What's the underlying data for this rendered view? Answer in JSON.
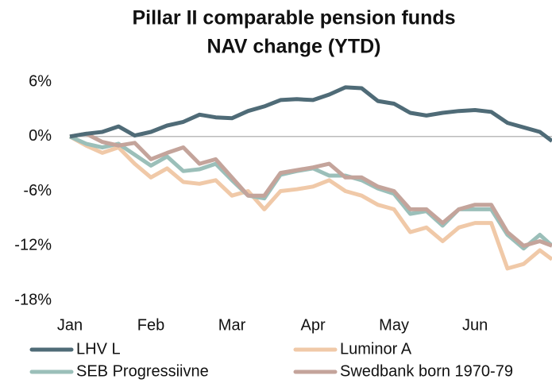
{
  "chart_data": {
    "type": "line",
    "title": [
      "Pillar II comparable pension funds",
      "NAV change (YTD)"
    ],
    "x": [
      0,
      0.2,
      0.4,
      0.6,
      0.8,
      1.0,
      1.2,
      1.4,
      1.6,
      1.8,
      2.0,
      2.2,
      2.4,
      2.6,
      2.8,
      3.0,
      3.2,
      3.4,
      3.6,
      3.8,
      4.0,
      4.2,
      4.4,
      4.6,
      4.8,
      5.0,
      5.2,
      5.4,
      5.6,
      5.8,
      5.95
    ],
    "series": [
      {
        "name": "Luminor A",
        "color": "#f0c9a8",
        "values": [
          0,
          -1.0,
          -1.8,
          -1.2,
          -3.0,
          -4.5,
          -3.5,
          -5.0,
          -5.2,
          -4.8,
          -6.5,
          -6.0,
          -8.0,
          -6.0,
          -5.8,
          -5.5,
          -4.8,
          -6.0,
          -6.5,
          -7.5,
          -8.0,
          -10.5,
          -10.0,
          -11.5,
          -10.0,
          -9.5,
          -9.5,
          -14.5,
          -14.0,
          -12.5,
          -13.5
        ]
      },
      {
        "name": "SEB Progressiivne",
        "color": "#9bbfb9",
        "values": [
          0,
          -0.8,
          -1.2,
          -0.8,
          -2.0,
          -3.2,
          -2.2,
          -3.8,
          -3.6,
          -3.0,
          -4.8,
          -6.5,
          -6.8,
          -4.2,
          -3.8,
          -3.5,
          -4.3,
          -4.3,
          -4.8,
          -5.7,
          -6.3,
          -8.5,
          -8.2,
          -9.8,
          -8.0,
          -8.0,
          -8.0,
          -10.8,
          -12.3,
          -10.8,
          -12.0
        ]
      },
      {
        "name": "Swedbank born 1970-79",
        "color": "#c4a49b",
        "values": [
          0,
          0.3,
          -0.6,
          -1.0,
          -0.7,
          -2.5,
          -1.8,
          -1.2,
          -3.0,
          -2.5,
          -4.5,
          -6.5,
          -6.5,
          -4.0,
          -3.7,
          -3.4,
          -3.0,
          -4.5,
          -4.5,
          -5.5,
          -6.0,
          -8.0,
          -8.0,
          -9.5,
          -8.0,
          -7.5,
          -7.5,
          -10.5,
          -12.0,
          -11.5,
          -12.0
        ]
      },
      {
        "name": "LHV L",
        "color": "#4f6b77",
        "values": [
          0,
          0.3,
          0.5,
          1.1,
          0.1,
          0.5,
          1.2,
          1.6,
          2.4,
          2.1,
          2.0,
          2.8,
          3.3,
          4.0,
          4.1,
          4.0,
          4.6,
          5.4,
          5.3,
          3.9,
          3.6,
          2.6,
          2.3,
          2.6,
          2.8,
          2.9,
          2.7,
          1.5,
          1.0,
          0.5,
          -0.5
        ]
      }
    ],
    "legend_order": [
      3,
      0,
      1,
      2
    ],
    "xlim": [
      0,
      5.95
    ],
    "xticks": [
      {
        "value": 0,
        "label": "Jan"
      },
      {
        "value": 1,
        "label": "Feb"
      },
      {
        "value": 2,
        "label": "Mar"
      },
      {
        "value": 3,
        "label": "Apr"
      },
      {
        "value": 4,
        "label": "May"
      },
      {
        "value": 5,
        "label": "Jun"
      }
    ],
    "ylim": [
      -18,
      6
    ],
    "yticks": [
      {
        "value": 6,
        "label": "6%"
      },
      {
        "value": 0,
        "label": "0%"
      },
      {
        "value": -6,
        "label": "-6%"
      },
      {
        "value": -12,
        "label": "-12%"
      },
      {
        "value": -18,
        "label": "-18%"
      }
    ],
    "legend": "bottom"
  }
}
